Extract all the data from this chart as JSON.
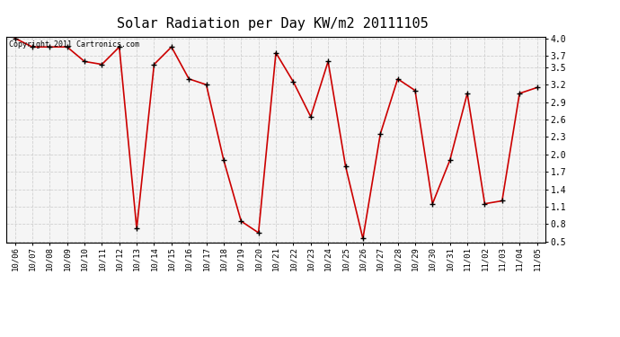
{
  "title": "Solar Radiation per Day KW/m2 20111105",
  "copyright_text": "Copyright 2011 Cartronics.com",
  "dates": [
    "10/06",
    "10/07",
    "10/08",
    "10/09",
    "10/10",
    "10/11",
    "10/12",
    "10/13",
    "10/14",
    "10/15",
    "10/16",
    "10/17",
    "10/18",
    "10/19",
    "10/20",
    "10/21",
    "10/22",
    "10/23",
    "10/24",
    "10/25",
    "10/26",
    "10/27",
    "10/28",
    "10/29",
    "10/30",
    "10/31",
    "11/01",
    "11/02",
    "11/03",
    "11/04",
    "11/05"
  ],
  "values": [
    4.0,
    3.85,
    3.85,
    3.85,
    3.6,
    3.55,
    3.85,
    0.72,
    3.55,
    3.85,
    3.3,
    3.2,
    1.9,
    0.85,
    0.65,
    3.75,
    3.25,
    2.65,
    3.6,
    1.8,
    0.55,
    2.35,
    3.3,
    3.1,
    1.15,
    1.9,
    3.05,
    1.15,
    1.2,
    3.05,
    3.15
  ],
  "line_color": "#cc0000",
  "marker_color": "#000000",
  "bg_color": "#ffffff",
  "plot_bg_color": "#f5f5f5",
  "grid_color": "#cccccc",
  "ylim_min": 0.5,
  "ylim_max": 4.0,
  "yticks": [
    0.5,
    0.8,
    1.1,
    1.4,
    1.7,
    2.0,
    2.3,
    2.6,
    2.9,
    3.2,
    3.5,
    3.7,
    4.0
  ],
  "title_fontsize": 11,
  "tick_fontsize": 6.5,
  "copyright_fontsize": 6
}
